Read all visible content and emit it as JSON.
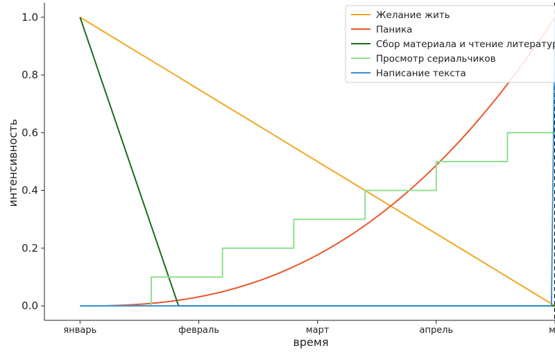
{
  "chart_data": {
    "type": "line",
    "xlabel": "время",
    "ylabel": "интенсивность",
    "x_ticks": [
      "январь",
      "февраль",
      "март",
      "апрель",
      "ма"
    ],
    "x_tick_positions": [
      0,
      1,
      2,
      3,
      4
    ],
    "xlim": [
      -0.3,
      4.0
    ],
    "ylim": [
      -0.05,
      1.05
    ],
    "y_ticks": [
      0.0,
      0.2,
      0.4,
      0.6,
      0.8,
      1.0
    ],
    "y_tick_labels": [
      "0.0",
      "0.2",
      "0.4",
      "0.6",
      "0.8",
      "1.0"
    ],
    "grid": false,
    "legend_position": "top-right",
    "deadline_marker": {
      "x": 4,
      "style": "dashed",
      "color": "#000000"
    },
    "series": [
      {
        "name": "Желание жить",
        "color": "#f0a722",
        "shape": "linear",
        "x": [
          0,
          4
        ],
        "y": [
          1.0,
          0.0
        ]
      },
      {
        "name": "Паника",
        "color": "#e8562a",
        "shape": "power",
        "x": [
          0,
          4
        ],
        "y": [
          0.0,
          1.0
        ],
        "exponent": 2.5
      },
      {
        "name": "Сбор материала и чтение литературы",
        "color": "#1a6b1a",
        "shape": "linear",
        "x": [
          0,
          0.83,
          4
        ],
        "y": [
          1.0,
          0.0,
          0.0
        ]
      },
      {
        "name": "Просмотр сериальчиков",
        "color": "#8de08d",
        "shape": "step",
        "x": [
          0,
          0.6,
          1.2,
          1.8,
          2.4,
          3.0,
          3.6,
          4.0
        ],
        "y": [
          0.0,
          0.1,
          0.2,
          0.3,
          0.4,
          0.5,
          0.6,
          0.6
        ]
      },
      {
        "name": "Написание текста",
        "color": "#3591d6",
        "shape": "linear",
        "x": [
          0,
          3.97,
          4.0
        ],
        "y": [
          0.0,
          0.0,
          1.0
        ]
      }
    ]
  }
}
